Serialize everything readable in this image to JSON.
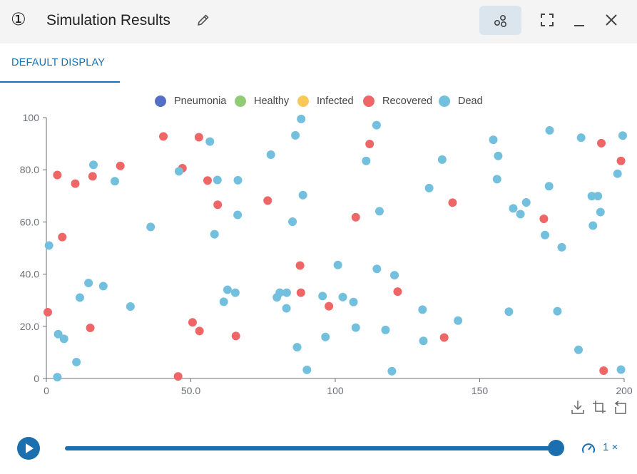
{
  "header": {
    "index": "①",
    "title": "Simulation Results"
  },
  "tabs": [
    {
      "label": "DEFAULT DISPLAY",
      "active": true
    }
  ],
  "player": {
    "speed_label": "1 ×",
    "progress": 1.0
  },
  "colors": {
    "accent": "#1b6fae",
    "pneumonia": "#5470c6",
    "healthy": "#91cc75",
    "infected": "#fac858",
    "recovered": "#ee6666",
    "dead": "#73c0de"
  },
  "chart_data": {
    "type": "scatter",
    "title": "",
    "xlabel": "",
    "ylabel": "",
    "xlim": [
      0,
      200
    ],
    "ylim": [
      0,
      100
    ],
    "xticks": [
      0,
      50,
      100,
      150,
      200
    ],
    "xtick_labels": [
      "0",
      "50.0",
      "100",
      "150",
      "200"
    ],
    "yticks": [
      0,
      20,
      40,
      60,
      80,
      100
    ],
    "ytick_labels": [
      "0",
      "20.0",
      "40.0",
      "60.0",
      "80.0",
      "100"
    ],
    "grid": false,
    "legend_position": "top-center",
    "series": [
      {
        "name": "Pneumonia",
        "color": "#5470c6",
        "points": []
      },
      {
        "name": "Healthy",
        "color": "#91cc75",
        "points": []
      },
      {
        "name": "Infected",
        "color": "#fac858",
        "points": []
      },
      {
        "name": "Recovered",
        "color": "#ee6666",
        "points": [
          [
            0.5,
            25.4
          ],
          [
            3.8,
            78.0
          ],
          [
            5.5,
            54.2
          ],
          [
            10.0,
            74.7
          ],
          [
            15.2,
            19.4
          ],
          [
            16.0,
            77.5
          ],
          [
            25.6,
            81.5
          ],
          [
            40.5,
            92.8
          ],
          [
            45.6,
            0.8
          ],
          [
            47.1,
            80.6
          ],
          [
            50.6,
            21.5
          ],
          [
            52.8,
            92.5
          ],
          [
            53.0,
            18.2
          ],
          [
            55.8,
            75.9
          ],
          [
            59.3,
            66.6
          ],
          [
            65.6,
            16.3
          ],
          [
            76.6,
            68.2
          ],
          [
            87.8,
            43.3
          ],
          [
            88.1,
            32.9
          ],
          [
            97.8,
            27.7
          ],
          [
            107.1,
            61.8
          ],
          [
            111.9,
            89.9
          ],
          [
            121.6,
            33.3
          ],
          [
            137.7,
            15.7
          ],
          [
            140.6,
            67.4
          ],
          [
            172.2,
            61.2
          ],
          [
            192.1,
            90.2
          ],
          [
            192.9,
            3.0
          ],
          [
            198.9,
            83.4
          ]
        ]
      },
      {
        "name": "Dead",
        "color": "#73c0de",
        "points": [
          [
            0.9,
            51.0
          ],
          [
            3.8,
            0.5
          ],
          [
            4.1,
            17.0
          ],
          [
            6.1,
            15.2
          ],
          [
            10.4,
            6.3
          ],
          [
            11.6,
            31.0
          ],
          [
            14.6,
            36.6
          ],
          [
            16.3,
            81.9
          ],
          [
            19.7,
            35.4
          ],
          [
            23.7,
            75.6
          ],
          [
            29.1,
            27.6
          ],
          [
            36.1,
            58.1
          ],
          [
            45.9,
            79.4
          ],
          [
            56.6,
            90.8
          ],
          [
            58.2,
            55.3
          ],
          [
            59.2,
            76.1
          ],
          [
            61.4,
            29.4
          ],
          [
            62.7,
            34.0
          ],
          [
            65.4,
            32.9
          ],
          [
            66.2,
            62.7
          ],
          [
            66.3,
            76.0
          ],
          [
            77.7,
            85.8
          ],
          [
            79.8,
            31.1
          ],
          [
            80.8,
            32.9
          ],
          [
            83.1,
            26.9
          ],
          [
            83.2,
            32.9
          ],
          [
            85.2,
            60.1
          ],
          [
            86.2,
            93.2
          ],
          [
            86.8,
            12.0
          ],
          [
            88.2,
            99.5
          ],
          [
            88.8,
            70.3
          ],
          [
            90.2,
            3.3
          ],
          [
            95.6,
            31.6
          ],
          [
            96.6,
            15.9
          ],
          [
            100.9,
            43.5
          ],
          [
            102.6,
            31.2
          ],
          [
            106.3,
            29.3
          ],
          [
            107.1,
            19.5
          ],
          [
            110.7,
            83.4
          ],
          [
            114.3,
            97.1
          ],
          [
            114.4,
            42.0
          ],
          [
            115.3,
            64.1
          ],
          [
            117.4,
            18.6
          ],
          [
            119.6,
            2.8
          ],
          [
            120.5,
            39.6
          ],
          [
            130.2,
            26.4
          ],
          [
            130.5,
            14.4
          ],
          [
            132.5,
            73.0
          ],
          [
            137.0,
            83.9
          ],
          [
            142.5,
            22.2
          ],
          [
            154.7,
            91.5
          ],
          [
            156.0,
            76.4
          ],
          [
            156.4,
            85.3
          ],
          [
            160.1,
            25.6
          ],
          [
            161.6,
            65.2
          ],
          [
            164.1,
            63.0
          ],
          [
            166.1,
            67.5
          ],
          [
            172.6,
            55.0
          ],
          [
            174.0,
            73.7
          ],
          [
            174.2,
            95.1
          ],
          [
            176.9,
            25.8
          ],
          [
            178.4,
            50.3
          ],
          [
            184.2,
            11.0
          ],
          [
            185.1,
            92.3
          ],
          [
            188.8,
            69.9
          ],
          [
            189.2,
            58.6
          ],
          [
            190.9,
            69.9
          ],
          [
            191.8,
            63.8
          ],
          [
            197.7,
            78.5
          ],
          [
            198.9,
            3.4
          ],
          [
            199.5,
            93.1
          ]
        ]
      }
    ]
  }
}
